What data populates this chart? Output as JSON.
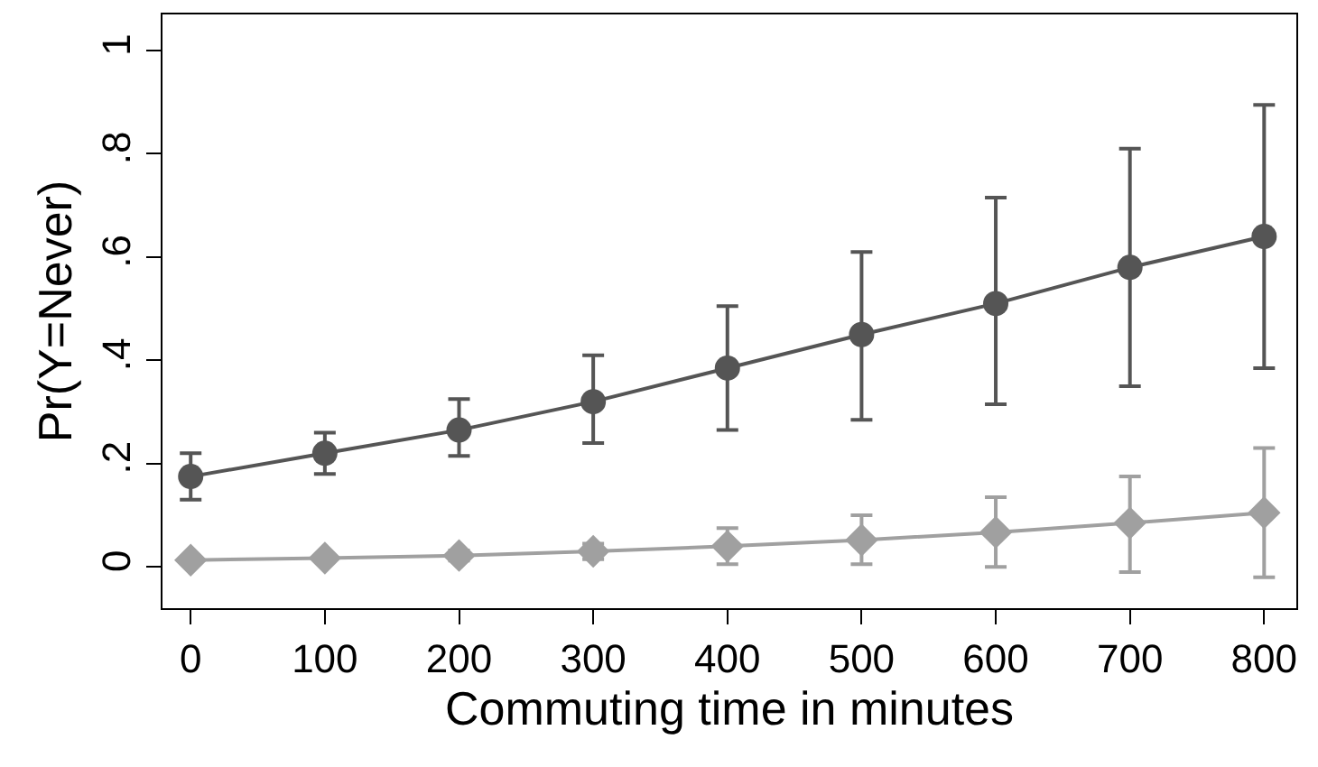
{
  "chart_data": {
    "type": "line",
    "xlabel": "Commuting time in minutes",
    "ylabel": "Pr(Y=Never)",
    "x": [
      0,
      100,
      200,
      300,
      400,
      500,
      600,
      700,
      800
    ],
    "series": [
      {
        "color": "#555555",
        "marker": "circle",
        "values": [
          0.175,
          0.22,
          0.265,
          0.32,
          0.385,
          0.45,
          0.51,
          0.58,
          0.64
        ],
        "errors": [
          [
            0.13,
            0.22
          ],
          [
            0.18,
            0.26
          ],
          [
            0.215,
            0.325
          ],
          [
            0.24,
            0.41
          ],
          [
            0.265,
            0.505
          ],
          [
            0.285,
            0.61
          ],
          [
            0.315,
            0.715
          ],
          [
            0.35,
            0.81
          ],
          [
            0.385,
            0.895
          ]
        ]
      },
      {
        "color": "#a0a0a0",
        "marker": "diamond",
        "values": [
          0.013,
          0.017,
          0.022,
          0.03,
          0.04,
          0.052,
          0.067,
          0.085,
          0.105
        ],
        "errors": [
          null,
          null,
          [
            0.012,
            0.032
          ],
          [
            0.015,
            0.045
          ],
          [
            0.005,
            0.075
          ],
          [
            0.005,
            0.1
          ],
          [
            0,
            0.135
          ],
          [
            -0.01,
            0.175
          ],
          [
            -0.02,
            0.23
          ]
        ]
      }
    ],
    "xlim": [
      -21,
      824
    ],
    "xticks": [
      0,
      100,
      200,
      300,
      400,
      500,
      600,
      700,
      800
    ],
    "ylim": [
      -0.08,
      1.07
    ],
    "yticks": [
      {
        "value": 0,
        "label": "0"
      },
      {
        "value": 0.2,
        "label": ".2"
      },
      {
        "value": 0.4,
        "label": ".4"
      },
      {
        "value": 0.6,
        "label": ".6"
      },
      {
        "value": 0.8,
        "label": ".8"
      },
      {
        "value": 1,
        "label": "1"
      }
    ],
    "grid": false,
    "line_style": "solid"
  }
}
